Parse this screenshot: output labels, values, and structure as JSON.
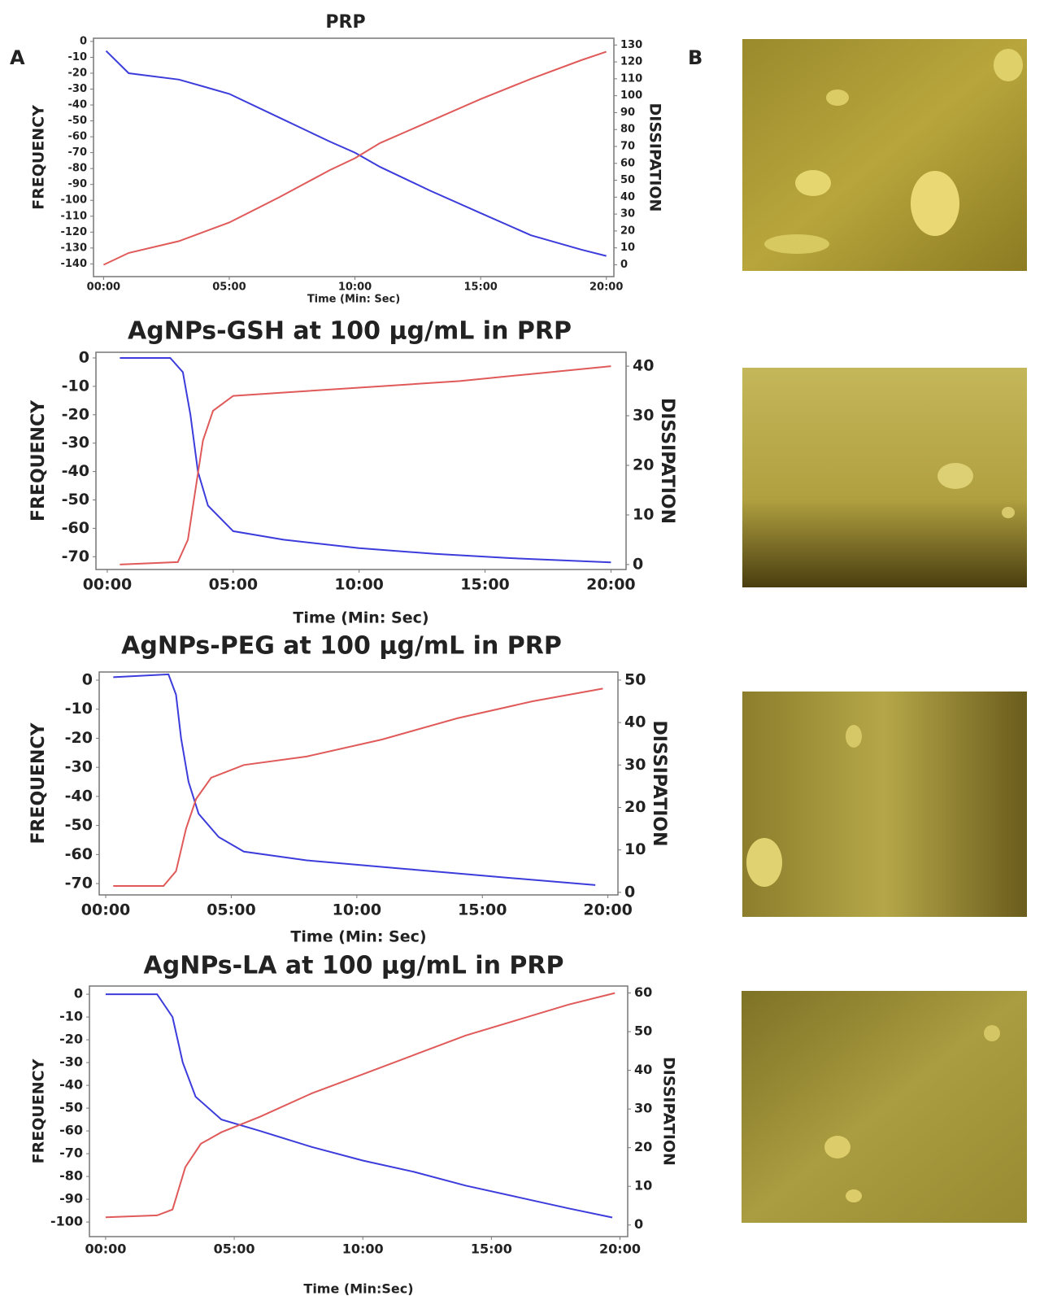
{
  "panel_labels": [
    "A",
    "B"
  ],
  "chart_data": [
    {
      "type": "line",
      "title": "PRP",
      "xlabel": "Time (Min: Sec)",
      "ylabel": "FREQUENCY",
      "y2label": "DISSIPATION",
      "xlim": [
        -0.4,
        20.3
      ],
      "ylim": [
        -148,
        2
      ],
      "y2lim": [
        -7,
        134
      ],
      "xticks": [
        {
          "value": 0,
          "label": "00:00"
        },
        {
          "value": 5,
          "label": "05:00"
        },
        {
          "value": 10,
          "label": "10:00"
        },
        {
          "value": 15,
          "label": "15:00"
        },
        {
          "value": 20,
          "label": "20:00"
        }
      ],
      "yticks": [
        -140,
        -130,
        -120,
        -110,
        -100,
        -90,
        -80,
        -70,
        -60,
        -50,
        -40,
        -30,
        -20,
        -10,
        0
      ],
      "y2ticks": [
        0,
        10,
        20,
        30,
        40,
        50,
        60,
        70,
        80,
        90,
        100,
        110,
        120,
        130
      ],
      "series": [
        {
          "color": "#3c3cdc",
          "x": [
            0.1,
            1,
            3,
            5,
            7,
            9,
            10,
            11,
            13,
            15,
            17,
            19,
            20
          ],
          "values": [
            -6,
            -20,
            -24,
            -33,
            -48,
            -63,
            -70,
            -79,
            -94,
            -108,
            -122,
            -131,
            -135
          ]
        },
        {
          "color": "#e05a5a",
          "axis": "y2",
          "x": [
            0,
            1,
            3,
            5,
            7,
            9,
            10,
            11,
            13,
            15,
            17,
            19,
            20
          ],
          "values": [
            0,
            7,
            14,
            25,
            40,
            56,
            63,
            72,
            85,
            98,
            110,
            121,
            126
          ]
        }
      ]
    },
    {
      "type": "line",
      "title": "AgNPs-GSH at 100 μg/mL in PRP",
      "xlabel": "Time (Min: Sec)",
      "ylabel": "FREQUENCY",
      "y2label": "DISSIPATION",
      "xlim": [
        -0.45,
        20.6
      ],
      "ylim": [
        -74.5,
        2
      ],
      "y2lim": [
        -1,
        42.8
      ],
      "xticks": [
        {
          "value": 0,
          "label": "00:00"
        },
        {
          "value": 5,
          "label": "05:00"
        },
        {
          "value": 10,
          "label": "10:00"
        },
        {
          "value": 15,
          "label": "15:00"
        },
        {
          "value": 20,
          "label": "20:00"
        }
      ],
      "yticks": [
        -70,
        -60,
        -50,
        -40,
        -30,
        -20,
        -10,
        0
      ],
      "y2ticks": [
        0,
        10,
        20,
        30,
        40
      ],
      "series": [
        {
          "color": "#3c3cdc",
          "x": [
            0.5,
            2.5,
            3,
            3.3,
            3.6,
            4,
            5,
            7,
            10,
            13,
            16,
            20
          ],
          "values": [
            0,
            0,
            -5,
            -20,
            -40,
            -52,
            -61,
            -64,
            -67,
            -69,
            -70.5,
            -72
          ]
        },
        {
          "color": "#e05a5a",
          "axis": "y2",
          "x": [
            0.5,
            2.8,
            3.2,
            3.5,
            3.8,
            4.2,
            5,
            8,
            11,
            14,
            17,
            20
          ],
          "values": [
            0,
            0.5,
            5,
            15,
            25,
            31,
            34,
            35,
            36,
            37,
            38.5,
            40
          ]
        }
      ]
    },
    {
      "type": "line",
      "title": "AgNPs-PEG at 100 μg/mL in PRP",
      "xlabel": "Time (Min: Sec)",
      "ylabel": "FREQUENCY",
      "y2label": "DISSIPATION",
      "xlim": [
        -0.26,
        20.4
      ],
      "ylim": [
        -73.9,
        2.8
      ],
      "y2lim": [
        -0.6,
        51.9
      ],
      "xticks": [
        {
          "value": 0,
          "label": "00:00"
        },
        {
          "value": 5,
          "label": "05:00"
        },
        {
          "value": 10,
          "label": "10:00"
        },
        {
          "value": 15,
          "label": "15:00"
        },
        {
          "value": 20,
          "label": "20:00"
        }
      ],
      "yticks": [
        -70,
        -60,
        -50,
        -40,
        -30,
        -20,
        -10,
        0
      ],
      "y2ticks": [
        0,
        10,
        20,
        30,
        40,
        50
      ],
      "series": [
        {
          "color": "#3c3cdc",
          "x": [
            0.3,
            2.5,
            2.8,
            3,
            3.3,
            3.7,
            4.5,
            5.5,
            8,
            12,
            16,
            19.5
          ],
          "values": [
            1,
            2,
            -5,
            -20,
            -35,
            -46,
            -54,
            -59,
            -62,
            -65,
            -68,
            -70.5
          ]
        },
        {
          "color": "#e05a5a",
          "axis": "y2",
          "x": [
            0.3,
            2.3,
            2.8,
            3.2,
            3.6,
            4.2,
            5.5,
            8,
            11,
            14,
            17,
            19.8
          ],
          "values": [
            1.5,
            1.5,
            5,
            15,
            22,
            27,
            30,
            32,
            36,
            41,
            45,
            48
          ]
        }
      ]
    },
    {
      "type": "line",
      "title": "AgNPs-LA at 100 μg/mL in PRP",
      "xlabel": "Time (Min:Sec)",
      "ylabel": "FREQUENCY",
      "y2label": "DISSIPATION",
      "xlim": [
        -0.63,
        20.3
      ],
      "ylim": [
        -106.4,
        3.6
      ],
      "y2lim": [
        -3,
        61.8
      ],
      "xticks": [
        {
          "value": 0,
          "label": "00:00"
        },
        {
          "value": 5,
          "label": "05:00"
        },
        {
          "value": 10,
          "label": "10:00"
        },
        {
          "value": 15,
          "label": "15:00"
        },
        {
          "value": 20,
          "label": "20:00"
        }
      ],
      "yticks": [
        -100,
        -90,
        -80,
        -70,
        -60,
        -50,
        -40,
        -30,
        -20,
        -10,
        0
      ],
      "y2ticks": [
        0,
        10,
        20,
        30,
        40,
        50,
        60
      ],
      "series": [
        {
          "color": "#3c3cdc",
          "x": [
            0,
            2,
            2.6,
            3,
            3.5,
            4.5,
            6,
            8,
            10,
            12,
            14,
            16,
            18,
            19.7
          ],
          "values": [
            0,
            0,
            -10,
            -30,
            -45,
            -55,
            -60,
            -67,
            -73,
            -78,
            -84,
            -89,
            -94,
            -98
          ]
        },
        {
          "color": "#e05a5a",
          "axis": "y2",
          "x": [
            0,
            2,
            2.6,
            3.1,
            3.7,
            4.5,
            6,
            8,
            10,
            12,
            14,
            16,
            18,
            19.8
          ],
          "values": [
            2,
            2.5,
            4,
            15,
            21,
            24,
            28,
            34,
            39,
            44,
            49,
            53,
            57,
            60
          ]
        }
      ]
    }
  ]
}
